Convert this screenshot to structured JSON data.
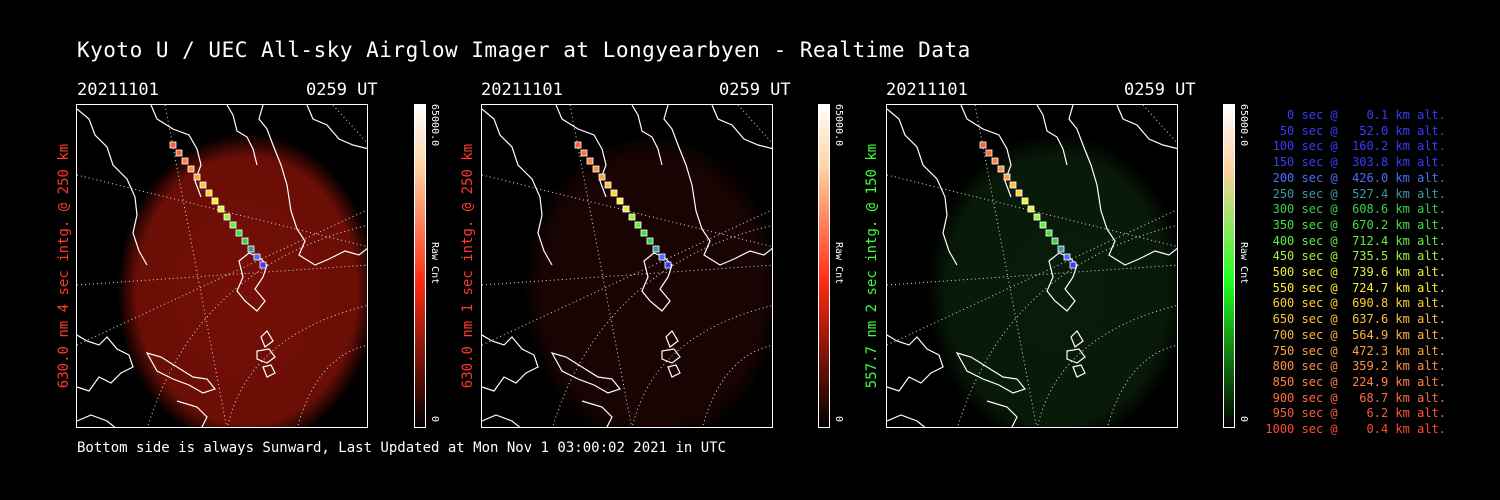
{
  "title": "Kyoto U / UEC All-sky Airglow Imager at Longyearbyen - Realtime Data",
  "footer": "Bottom side is always Sunward, Last Updated at Mon Nov  1 03:00:02 2021 in UTC",
  "panels": [
    {
      "date": "20211101",
      "time": "0259 UT",
      "side_label": "630.0 nm 4 sec intg. @ 250 km",
      "side_color": "#ff3a2a",
      "cbar_max": "65000.0",
      "cbar_unit": "Raw Cnt",
      "cbar_min": "0",
      "glow_color": "#8a1208",
      "glow_intensity": 0.85,
      "cbar_color": "#ff2a10"
    },
    {
      "date": "20211101",
      "time": "0259 UT",
      "side_label": "630.0 nm 1 sec intg. @ 250 km",
      "side_color": "#ff3a2a",
      "cbar_max": "65000.0",
      "cbar_unit": "Raw Cnt",
      "cbar_min": "0",
      "glow_color": "#3a0a06",
      "glow_intensity": 0.45,
      "cbar_color": "#ff2a10"
    },
    {
      "date": "20211101",
      "time": "0259 UT",
      "side_label": "557.7 nm 2 sec intg. @ 150 km",
      "side_color": "#40ff40",
      "cbar_max": "65000.0",
      "cbar_unit": "Raw Cnt",
      "cbar_min": "0",
      "glow_color": "#123812",
      "glow_intensity": 0.5,
      "cbar_color": "#20ff20"
    }
  ],
  "legend": [
    {
      "text": "   0 sec @    0.1 km alt.",
      "color": "#3a3aff"
    },
    {
      "text": "  50 sec @   52.0 km alt.",
      "color": "#3a3aff"
    },
    {
      "text": " 100 sec @  160.2 km alt.",
      "color": "#3a3aff"
    },
    {
      "text": " 150 sec @  303.8 km alt.",
      "color": "#3a3aff"
    },
    {
      "text": " 200 sec @  426.0 km alt.",
      "color": "#4a70ff"
    },
    {
      "text": " 250 sec @  527.4 km alt.",
      "color": "#3a9aa0"
    },
    {
      "text": " 300 sec @  608.6 km alt.",
      "color": "#3ad04a"
    },
    {
      "text": " 350 sec @  670.2 km alt.",
      "color": "#40e040"
    },
    {
      "text": " 400 sec @  712.4 km alt.",
      "color": "#60f040"
    },
    {
      "text": " 450 sec @  735.5 km alt.",
      "color": "#a0f040"
    },
    {
      "text": " 500 sec @  739.6 km alt.",
      "color": "#e0f040"
    },
    {
      "text": " 550 sec @  724.7 km alt.",
      "color": "#ffee30"
    },
    {
      "text": " 600 sec @  690.8 km alt.",
      "color": "#ffd030"
    },
    {
      "text": " 650 sec @  637.6 km alt.",
      "color": "#ffc040"
    },
    {
      "text": " 700 sec @  564.9 km alt.",
      "color": "#ffb040"
    },
    {
      "text": " 750 sec @  472.3 km alt.",
      "color": "#ffa040"
    },
    {
      "text": " 800 sec @  359.2 km alt.",
      "color": "#ff9040"
    },
    {
      "text": " 850 sec @  224.9 km alt.",
      "color": "#ff8040"
    },
    {
      "text": " 900 sec @   68.7 km alt.",
      "color": "#ff6a40"
    },
    {
      "text": " 950 sec @    6.2 km alt.",
      "color": "#ff5a3a"
    },
    {
      "text": "1000 sec @    0.4 km alt.",
      "color": "#ff4a30"
    }
  ]
}
